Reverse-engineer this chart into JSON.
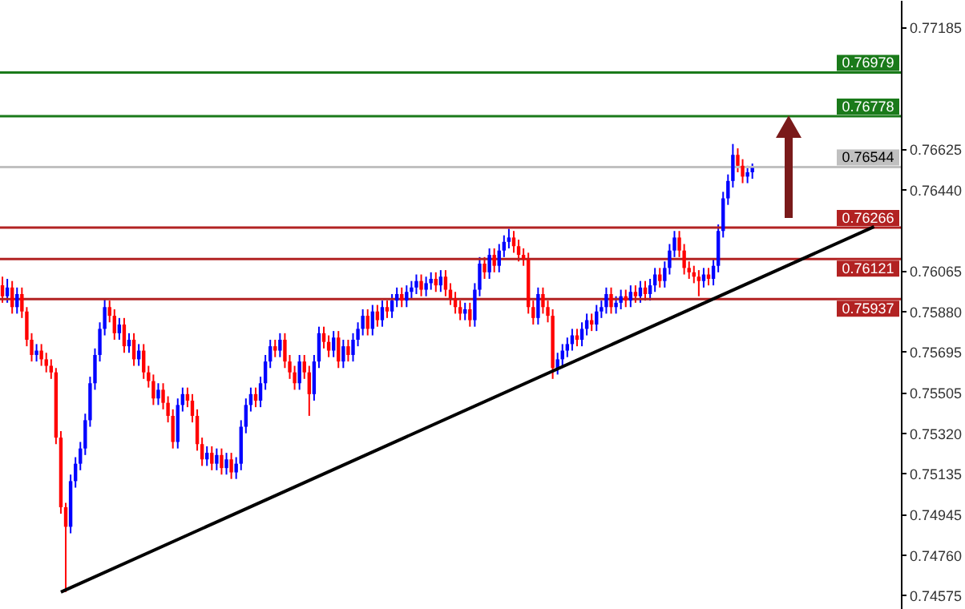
{
  "chart_data": {
    "type": "candlestick",
    "categories": [
      null,
      null,
      null,
      null,
      null,
      null,
      null,
      null,
      null,
      null,
      null,
      null,
      null,
      null,
      null,
      null,
      null,
      null,
      null,
      null,
      null,
      null,
      null,
      null,
      null,
      null,
      null,
      null,
      null,
      null,
      null,
      null,
      null,
      null,
      null,
      null,
      null,
      null,
      null,
      null,
      null,
      null,
      null,
      null,
      null,
      null,
      null,
      null,
      null,
      null,
      null,
      null,
      null,
      null,
      null,
      null,
      null,
      null,
      null,
      null,
      null,
      null,
      null,
      null,
      null,
      null,
      null,
      null,
      null,
      null,
      null,
      null,
      null,
      null,
      null,
      null,
      null,
      null,
      null,
      null,
      null,
      null,
      null,
      null,
      null,
      null,
      null,
      null,
      null,
      null,
      null,
      null,
      null,
      null,
      null,
      null,
      null,
      null,
      null,
      null,
      null,
      null,
      null,
      null,
      null,
      null,
      null,
      null,
      null,
      null,
      null,
      null,
      null,
      null,
      null,
      null,
      null,
      null,
      null,
      null,
      null,
      null,
      null,
      null,
      null,
      null,
      null,
      null,
      null,
      null,
      null,
      null,
      null,
      null,
      null,
      null,
      null,
      null,
      null,
      null,
      null,
      null,
      null,
      null,
      null,
      null,
      null,
      null,
      null,
      null,
      null,
      null,
      null,
      null,
      null,
      null,
      null,
      null,
      null,
      null,
      null,
      null,
      null,
      null,
      null,
      null,
      null,
      null,
      null,
      null,
      null,
      null,
      null,
      null,
      null,
      null,
      null,
      null,
      null,
      null,
      null,
      null,
      null,
      null,
      null
    ],
    "ohlc": [
      [
        0.76,
        0.7604,
        0.7592,
        0.7595
      ],
      [
        0.7595,
        0.7603,
        0.7592,
        0.7599
      ],
      [
        0.7599,
        0.7602,
        0.7587,
        0.759
      ],
      [
        0.759,
        0.7599,
        0.7587,
        0.7596
      ],
      [
        0.7596,
        0.7599,
        0.7585,
        0.7588
      ],
      [
        0.7588,
        0.759,
        0.7572,
        0.7575
      ],
      [
        0.7575,
        0.7578,
        0.7565,
        0.7568
      ],
      [
        0.7568,
        0.7573,
        0.7565,
        0.757
      ],
      [
        0.757,
        0.7573,
        0.7563,
        0.7566
      ],
      [
        0.7566,
        0.7569,
        0.756,
        0.7563
      ],
      [
        0.7563,
        0.7566,
        0.7557,
        0.756
      ],
      [
        0.756,
        0.7562,
        0.7527,
        0.753
      ],
      [
        0.753,
        0.7533,
        0.7495,
        0.7498
      ],
      [
        0.7498,
        0.75,
        0.7459,
        0.7489
      ],
      [
        0.7489,
        0.7513,
        0.7486,
        0.751
      ],
      [
        0.751,
        0.7521,
        0.7507,
        0.7518
      ],
      [
        0.7518,
        0.7528,
        0.7515,
        0.7525
      ],
      [
        0.7525,
        0.7541,
        0.7522,
        0.7538
      ],
      [
        0.7538,
        0.7558,
        0.7535,
        0.7555
      ],
      [
        0.7555,
        0.7571,
        0.7552,
        0.7568
      ],
      [
        0.7568,
        0.7583,
        0.7565,
        0.758
      ],
      [
        0.758,
        0.7594,
        0.7577,
        0.759
      ],
      [
        0.759,
        0.7593,
        0.7583,
        0.7586
      ],
      [
        0.7586,
        0.7589,
        0.7575,
        0.7578
      ],
      [
        0.7578,
        0.7585,
        0.7575,
        0.7582
      ],
      [
        0.7582,
        0.7585,
        0.7569,
        0.7572
      ],
      [
        0.7572,
        0.7578,
        0.7569,
        0.7575
      ],
      [
        0.7575,
        0.7578,
        0.7563,
        0.7566
      ],
      [
        0.7566,
        0.7573,
        0.7563,
        0.757
      ],
      [
        0.757,
        0.7573,
        0.7557,
        0.756
      ],
      [
        0.756,
        0.7563,
        0.7553,
        0.7556
      ],
      [
        0.7556,
        0.7559,
        0.7545,
        0.7548
      ],
      [
        0.7548,
        0.7555,
        0.7545,
        0.7552
      ],
      [
        0.7552,
        0.7555,
        0.7543,
        0.7546
      ],
      [
        0.7546,
        0.7549,
        0.7537,
        0.754
      ],
      [
        0.754,
        0.7543,
        0.7525,
        0.7528
      ],
      [
        0.7528,
        0.7548,
        0.7525,
        0.7545
      ],
      [
        0.7545,
        0.7553,
        0.7542,
        0.755
      ],
      [
        0.755,
        0.7553,
        0.7544,
        0.7547
      ],
      [
        0.7547,
        0.755,
        0.7537,
        0.754
      ],
      [
        0.754,
        0.7543,
        0.7524,
        0.7527
      ],
      [
        0.7527,
        0.753,
        0.7517,
        0.752
      ],
      [
        0.752,
        0.7526,
        0.7517,
        0.7523
      ],
      [
        0.7523,
        0.7526,
        0.7515,
        0.7518
      ],
      [
        0.7518,
        0.7525,
        0.7515,
        0.7522
      ],
      [
        0.7522,
        0.7525,
        0.7513,
        0.7516
      ],
      [
        0.7516,
        0.7523,
        0.7513,
        0.752
      ],
      [
        0.752,
        0.7523,
        0.7511,
        0.7514
      ],
      [
        0.7514,
        0.7521,
        0.7511,
        0.7518
      ],
      [
        0.7518,
        0.7538,
        0.7515,
        0.7535
      ],
      [
        0.7535,
        0.7548,
        0.7532,
        0.7545
      ],
      [
        0.7545,
        0.7553,
        0.7542,
        0.755
      ],
      [
        0.755,
        0.7553,
        0.7544,
        0.7547
      ],
      [
        0.7547,
        0.7558,
        0.7544,
        0.7555
      ],
      [
        0.7555,
        0.7568,
        0.7552,
        0.7565
      ],
      [
        0.7565,
        0.7575,
        0.7562,
        0.7572
      ],
      [
        0.7572,
        0.7575,
        0.7567,
        0.757
      ],
      [
        0.757,
        0.7578,
        0.7567,
        0.7575
      ],
      [
        0.7575,
        0.7578,
        0.7562,
        0.7565
      ],
      [
        0.7565,
        0.7568,
        0.7557,
        0.756
      ],
      [
        0.756,
        0.7563,
        0.7552,
        0.7555
      ],
      [
        0.7555,
        0.7568,
        0.7552,
        0.7565
      ],
      [
        0.7565,
        0.7568,
        0.7557,
        0.756
      ],
      [
        0.756,
        0.7563,
        0.754,
        0.755
      ],
      [
        0.755,
        0.7568,
        0.7547,
        0.7565
      ],
      [
        0.7565,
        0.7581,
        0.7562,
        0.7578
      ],
      [
        0.7578,
        0.7581,
        0.7571,
        0.7574
      ],
      [
        0.7574,
        0.7577,
        0.7567,
        0.757
      ],
      [
        0.757,
        0.7579,
        0.7567,
        0.7576
      ],
      [
        0.7576,
        0.7579,
        0.7562,
        0.7565
      ],
      [
        0.7565,
        0.7575,
        0.7562,
        0.7572
      ],
      [
        0.7572,
        0.7575,
        0.7565,
        0.7568
      ],
      [
        0.7568,
        0.7578,
        0.7565,
        0.7575
      ],
      [
        0.7575,
        0.7583,
        0.7572,
        0.758
      ],
      [
        0.758,
        0.7589,
        0.7577,
        0.7586
      ],
      [
        0.7586,
        0.7589,
        0.7577,
        0.758
      ],
      [
        0.758,
        0.7591,
        0.7577,
        0.7588
      ],
      [
        0.7588,
        0.7591,
        0.7581,
        0.7584
      ],
      [
        0.7584,
        0.7593,
        0.7581,
        0.759
      ],
      [
        0.759,
        0.7593,
        0.7585,
        0.7588
      ],
      [
        0.7588,
        0.7596,
        0.7585,
        0.7593
      ],
      [
        0.7593,
        0.7599,
        0.759,
        0.7596
      ],
      [
        0.7596,
        0.7599,
        0.759,
        0.7593
      ],
      [
        0.7593,
        0.76,
        0.759,
        0.7597
      ],
      [
        0.7597,
        0.7602,
        0.7594,
        0.7599
      ],
      [
        0.7599,
        0.7605,
        0.7596,
        0.7602
      ],
      [
        0.7602,
        0.7605,
        0.7595,
        0.7598
      ],
      [
        0.7598,
        0.7604,
        0.7595,
        0.7601
      ],
      [
        0.7601,
        0.7606,
        0.7598,
        0.7603
      ],
      [
        0.7603,
        0.7606,
        0.7597,
        0.76
      ],
      [
        0.76,
        0.7607,
        0.7597,
        0.7604
      ],
      [
        0.7604,
        0.7607,
        0.7595,
        0.7598
      ],
      [
        0.7598,
        0.7601,
        0.7591,
        0.7594
      ],
      [
        0.7594,
        0.7597,
        0.7587,
        0.759
      ],
      [
        0.759,
        0.7593,
        0.7584,
        0.7587
      ],
      [
        0.7587,
        0.7592,
        0.7584,
        0.7589
      ],
      [
        0.7589,
        0.7592,
        0.7581,
        0.7584
      ],
      [
        0.7584,
        0.7601,
        0.7581,
        0.7598
      ],
      [
        0.7598,
        0.7613,
        0.7595,
        0.761
      ],
      [
        0.761,
        0.7613,
        0.7603,
        0.7606
      ],
      [
        0.7606,
        0.7617,
        0.7603,
        0.7614
      ],
      [
        0.7614,
        0.7617,
        0.7606,
        0.7609
      ],
      [
        0.7609,
        0.7619,
        0.7606,
        0.7616
      ],
      [
        0.7616,
        0.7623,
        0.7613,
        0.762
      ],
      [
        0.762,
        0.7626,
        0.7617,
        0.7622
      ],
      [
        0.7622,
        0.7625,
        0.7615,
        0.7618
      ],
      [
        0.7618,
        0.7621,
        0.7611,
        0.7614
      ],
      [
        0.7614,
        0.7617,
        0.7609,
        0.7612
      ],
      [
        0.7612,
        0.7615,
        0.7587,
        0.759
      ],
      [
        0.759,
        0.7593,
        0.7582,
        0.7585
      ],
      [
        0.7585,
        0.7599,
        0.7582,
        0.7596
      ],
      [
        0.7596,
        0.7599,
        0.7587,
        0.759
      ],
      [
        0.759,
        0.7593,
        0.7583,
        0.7586
      ],
      [
        0.7586,
        0.7589,
        0.7557,
        0.7562
      ],
      [
        0.7562,
        0.7569,
        0.7559,
        0.7566
      ],
      [
        0.7566,
        0.7573,
        0.7563,
        0.757
      ],
      [
        0.757,
        0.7576,
        0.7567,
        0.7573
      ],
      [
        0.7573,
        0.758,
        0.757,
        0.7577
      ],
      [
        0.7577,
        0.758,
        0.7572,
        0.7575
      ],
      [
        0.7575,
        0.7583,
        0.7572,
        0.758
      ],
      [
        0.758,
        0.7587,
        0.7577,
        0.7584
      ],
      [
        0.7584,
        0.7587,
        0.7579,
        0.7582
      ],
      [
        0.7582,
        0.7591,
        0.7579,
        0.7588
      ],
      [
        0.7588,
        0.7593,
        0.7585,
        0.759
      ],
      [
        0.759,
        0.7599,
        0.7587,
        0.7596
      ],
      [
        0.7596,
        0.7599,
        0.7587,
        0.759
      ],
      [
        0.759,
        0.7595,
        0.7587,
        0.7592
      ],
      [
        0.7592,
        0.7598,
        0.7589,
        0.7595
      ],
      [
        0.7595,
        0.7598,
        0.759,
        0.7593
      ],
      [
        0.7593,
        0.76,
        0.759,
        0.7597
      ],
      [
        0.7597,
        0.76,
        0.7592,
        0.7595
      ],
      [
        0.7595,
        0.7602,
        0.7592,
        0.7599
      ],
      [
        0.7599,
        0.7602,
        0.7593,
        0.7596
      ],
      [
        0.7596,
        0.7603,
        0.7593,
        0.76
      ],
      [
        0.76,
        0.7608,
        0.7597,
        0.7605
      ],
      [
        0.7605,
        0.7608,
        0.7599,
        0.7602
      ],
      [
        0.7602,
        0.7611,
        0.7599,
        0.7608
      ],
      [
        0.7608,
        0.7619,
        0.7605,
        0.7616
      ],
      [
        0.7616,
        0.7625,
        0.7613,
        0.7622
      ],
      [
        0.7622,
        0.7625,
        0.7613,
        0.7616
      ],
      [
        0.7616,
        0.7619,
        0.7605,
        0.7608
      ],
      [
        0.7608,
        0.7611,
        0.7603,
        0.7606
      ],
      [
        0.7606,
        0.7609,
        0.7601,
        0.7604
      ],
      [
        0.7604,
        0.7607,
        0.7595,
        0.7602
      ],
      [
        0.7602,
        0.7608,
        0.7599,
        0.7605
      ],
      [
        0.7605,
        0.7608,
        0.76,
        0.7603
      ],
      [
        0.7603,
        0.7612,
        0.76,
        0.7609
      ],
      [
        0.7609,
        0.7628,
        0.7606,
        0.7625
      ],
      [
        0.7625,
        0.7643,
        0.7622,
        0.764
      ],
      [
        0.764,
        0.7651,
        0.7637,
        0.7648
      ],
      [
        0.7648,
        0.7665,
        0.7645,
        0.766
      ],
      [
        0.766,
        0.7663,
        0.7652,
        0.7655
      ],
      [
        0.7655,
        0.7658,
        0.7647,
        0.765
      ],
      [
        0.765,
        0.7655,
        0.7647,
        0.7652
      ],
      [
        0.7652,
        0.7656,
        0.7649,
        0.7654
      ],
      null,
      null,
      null,
      null,
      null,
      null,
      null,
      null,
      null,
      null,
      null,
      null,
      null,
      null,
      null,
      null,
      null,
      null,
      null,
      null,
      null,
      null,
      null,
      null,
      null,
      null,
      null,
      null,
      null,
      null
    ],
    "colors": [
      "#ff0000",
      "#0000ff",
      "#ff0000",
      "#0000ff",
      "#ff0000",
      "#ff0000",
      "#ff0000",
      "#0000ff",
      "#ff0000",
      "#ff0000",
      "#ff0000",
      "#ff0000",
      "#ff0000",
      "#ff0000",
      "#0000ff",
      "#0000ff",
      "#0000ff",
      "#0000ff",
      "#0000ff",
      "#0000ff",
      "#0000ff",
      "#0000ff",
      "#ff0000",
      "#ff0000",
      "#0000ff",
      "#ff0000",
      "#0000ff",
      "#ff0000",
      "#0000ff",
      "#ff0000",
      "#ff0000",
      "#ff0000",
      "#0000ff",
      "#ff0000",
      "#ff0000",
      "#ff0000",
      "#0000ff",
      "#0000ff",
      "#ff0000",
      "#ff0000",
      "#ff0000",
      "#ff0000",
      "#0000ff",
      "#ff0000",
      "#0000ff",
      "#ff0000",
      "#0000ff",
      "#ff0000",
      "#0000ff",
      "#0000ff",
      "#0000ff",
      "#0000ff",
      "#ff0000",
      "#0000ff",
      "#0000ff",
      "#0000ff",
      "#ff0000",
      "#0000ff",
      "#ff0000",
      "#ff0000",
      "#ff0000",
      "#0000ff",
      "#ff0000",
      "#ff0000",
      "#0000ff",
      "#0000ff",
      "#ff0000",
      "#ff0000",
      "#0000ff",
      "#ff0000",
      "#0000ff",
      "#ff0000",
      "#0000ff",
      "#0000ff",
      "#0000ff",
      "#ff0000",
      "#0000ff",
      "#ff0000",
      "#0000ff",
      "#ff0000",
      "#0000ff",
      "#0000ff",
      "#ff0000",
      "#0000ff",
      "#0000ff",
      "#0000ff",
      "#ff0000",
      "#0000ff",
      "#0000ff",
      "#ff0000",
      "#0000ff",
      "#ff0000",
      "#ff0000",
      "#ff0000",
      "#ff0000",
      "#0000ff",
      "#ff0000",
      "#0000ff",
      "#0000ff",
      "#ff0000",
      "#0000ff",
      "#ff0000",
      "#0000ff",
      "#0000ff",
      "#0000ff",
      "#ff0000",
      "#ff0000",
      "#ff0000",
      "#ff0000",
      "#ff0000",
      "#0000ff",
      "#ff0000",
      "#ff0000",
      "#ff0000",
      "#0000ff",
      "#0000ff",
      "#0000ff",
      "#0000ff",
      "#ff0000",
      "#0000ff",
      "#0000ff",
      "#ff0000",
      "#0000ff",
      "#0000ff",
      "#0000ff",
      "#ff0000",
      "#0000ff",
      "#0000ff",
      "#ff0000",
      "#0000ff",
      "#ff0000",
      "#0000ff",
      "#ff0000",
      "#0000ff",
      "#0000ff",
      "#ff0000",
      "#0000ff",
      "#0000ff",
      "#0000ff",
      "#ff0000",
      "#ff0000",
      "#ff0000",
      "#ff0000",
      "#ff0000",
      "#0000ff",
      "#ff0000",
      "#0000ff",
      "#0000ff",
      "#0000ff",
      "#0000ff",
      "#0000ff",
      "#ff0000",
      "#ff0000",
      "#0000ff",
      "#0000ff",
      null,
      null,
      null,
      null,
      null,
      null,
      null,
      null,
      null,
      null,
      null,
      null,
      null,
      null,
      null,
      null,
      null,
      null,
      null,
      null,
      null,
      null,
      null,
      null,
      null,
      null,
      null,
      null,
      null,
      null
    ],
    "series": [
      {
        "type": "line",
        "values": [
          null,
          null,
          null,
          null,
          null,
          null,
          null,
          null,
          null,
          null,
          null,
          null,
          0.7459,
          null,
          null,
          null,
          null,
          null,
          null,
          null,
          null,
          null,
          null,
          null,
          null,
          null,
          null,
          null,
          null,
          null,
          null,
          null,
          null,
          null,
          null,
          null,
          null,
          null,
          null,
          null,
          null,
          null,
          null,
          null,
          null,
          null,
          null,
          null,
          null,
          null,
          null,
          null,
          null,
          null,
          null,
          null,
          null,
          null,
          null,
          null,
          null,
          null,
          null,
          null,
          null,
          null,
          null,
          null,
          null,
          null,
          null,
          null,
          null,
          null,
          null,
          null,
          null,
          null,
          null,
          null,
          null,
          null,
          null,
          null,
          null,
          null,
          null,
          null,
          null,
          null,
          null,
          null,
          null,
          null,
          null,
          null,
          null,
          null,
          null,
          null,
          null,
          null,
          null,
          null,
          null,
          null,
          null,
          null,
          null,
          null,
          null,
          null,
          null,
          null,
          null,
          null,
          null,
          null,
          null,
          null,
          null,
          null,
          null,
          null,
          null,
          null,
          null,
          null,
          null,
          null,
          null,
          null,
          null,
          null,
          null,
          null,
          null,
          null,
          null,
          null,
          null,
          null,
          null,
          null,
          null,
          null,
          null,
          null,
          null,
          null,
          null,
          null,
          null,
          null,
          null,
          null,
          null,
          null,
          null,
          null,
          null,
          null,
          null,
          null,
          null,
          null,
          null,
          null,
          null,
          null,
          null,
          null,
          null,
          null,
          null,
          null,
          null,
          null,
          null,
          0.7627,
          null,
          null,
          null,
          null,
          null
        ],
        "color": "#000000"
      }
    ],
    "ylim": [
      0.74512,
      0.77312
    ],
    "yticks": [
      0.77185,
      0.76625,
      {
        "value": 0.7644,
        "label": "0.76440"
      },
      0.76065,
      {
        "value": 0.7588,
        "label": "0.75880"
      },
      0.75695,
      0.75505,
      {
        "value": 0.7532,
        "label": "0.75320"
      },
      0.75135,
      0.74945,
      {
        "value": 0.7476,
        "label": "0.74760"
      },
      0.74575
    ],
    "ref_lines": [
      {
        "axis": "y",
        "value": 0.76979,
        "label": "0.76979",
        "color": "#1a7a1a"
      },
      {
        "axis": "y",
        "value": 0.76778,
        "label": "0.76778",
        "color": "#1a7a1a"
      },
      {
        "axis": "y",
        "value": 0.76544,
        "label": "0.76544",
        "color": "#c0c0c0"
      },
      {
        "axis": "y",
        "value": 0.76266,
        "label": "0.76266",
        "color": "#b22222"
      },
      {
        "axis": "y",
        "value": 0.76121,
        "label": "0.76121",
        "color": "#b22222"
      },
      {
        "axis": "y",
        "value": 0.75937,
        "label": "0.75937",
        "color": "#b22222"
      }
    ],
    "tick_labels": "y"
  }
}
